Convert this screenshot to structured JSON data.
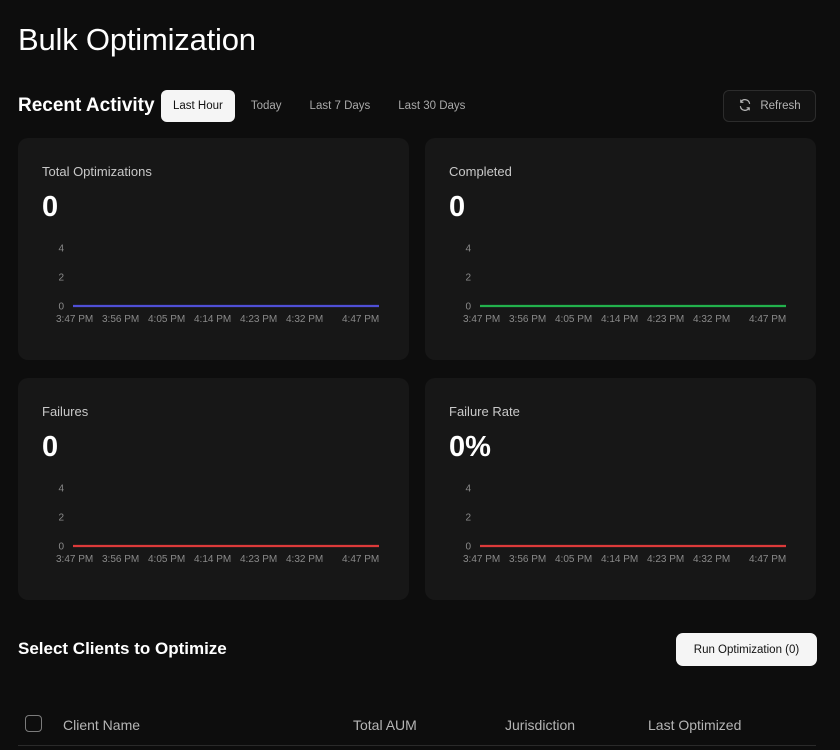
{
  "page": {
    "title": "Bulk Optimization"
  },
  "activity": {
    "title": "Recent Activity",
    "ranges": [
      "Last Hour",
      "Today",
      "Last 7 Days",
      "Last 30 Days"
    ],
    "selected_range": "Last Hour",
    "refresh_label": "Refresh",
    "refresh_icon": "refresh-icon"
  },
  "cards": [
    {
      "label": "Total Optimizations",
      "value": "0",
      "color": "#4f4fd6"
    },
    {
      "label": "Completed",
      "value": "0",
      "color": "#22b14c"
    },
    {
      "label": "Failures",
      "value": "0",
      "color": "#dc3a3a"
    },
    {
      "label": "Failure Rate",
      "value": "0%",
      "color": "#dc3a3a"
    }
  ],
  "chart_data": [
    {
      "type": "line",
      "x": [
        "3:47 PM",
        "3:56 PM",
        "4:05 PM",
        "4:14 PM",
        "4:23 PM",
        "4:32 PM",
        "4:47 PM"
      ],
      "yticks": [
        0,
        2,
        4
      ],
      "ylim": [
        0,
        4
      ],
      "series": [
        {
          "values": [
            0,
            0,
            0,
            0,
            0,
            0,
            0
          ],
          "color": "#4f4fd6"
        }
      ]
    },
    {
      "type": "line",
      "x": [
        "3:47 PM",
        "3:56 PM",
        "4:05 PM",
        "4:14 PM",
        "4:23 PM",
        "4:32 PM",
        "4:47 PM"
      ],
      "yticks": [
        0,
        2,
        4
      ],
      "ylim": [
        0,
        4
      ],
      "series": [
        {
          "values": [
            0,
            0,
            0,
            0,
            0,
            0,
            0
          ],
          "color": "#22b14c"
        }
      ]
    },
    {
      "type": "line",
      "x": [
        "3:47 PM",
        "3:56 PM",
        "4:05 PM",
        "4:14 PM",
        "4:23 PM",
        "4:32 PM",
        "4:47 PM"
      ],
      "yticks": [
        0,
        2,
        4
      ],
      "ylim": [
        0,
        4
      ],
      "series": [
        {
          "values": [
            0,
            0,
            0,
            0,
            0,
            0,
            0
          ],
          "color": "#dc3a3a"
        }
      ]
    },
    {
      "type": "line",
      "x": [
        "3:47 PM",
        "3:56 PM",
        "4:05 PM",
        "4:14 PM",
        "4:23 PM",
        "4:32 PM",
        "4:47 PM"
      ],
      "yticks": [
        0,
        2,
        4
      ],
      "ylim": [
        0,
        4
      ],
      "series": [
        {
          "values": [
            0,
            0,
            0,
            0,
            0,
            0,
            0
          ],
          "color": "#dc3a3a"
        }
      ]
    }
  ],
  "clients": {
    "title": "Select Clients to Optimize",
    "run_label": "Run Optimization (0)",
    "columns": [
      "Client Name",
      "Total AUM",
      "Jurisdiction",
      "Last Optimized"
    ]
  }
}
